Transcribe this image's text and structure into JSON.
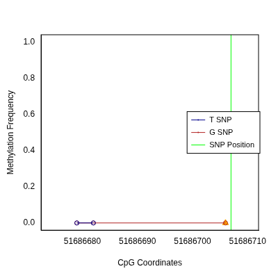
{
  "chart_data": {
    "type": "scatter",
    "x_label": "CpG Coordinates",
    "y_label": "Methylation Frequency",
    "x": [
      51686679,
      51686682,
      51686706
    ],
    "series": [
      {
        "name": "T SNP",
        "color": "#00008b",
        "marker": "circle",
        "line_style": "solid",
        "values": [
          0,
          0,
          null
        ]
      },
      {
        "name": "G SNP",
        "color": "#b22222",
        "marker": "circle",
        "line_style": "solid",
        "values": [
          0,
          0,
          0
        ]
      },
      {
        "color": "#ffa500",
        "marker": "triangle",
        "values": [
          null,
          null,
          0
        ]
      }
    ],
    "vlines": [
      {
        "name": "SNP Position",
        "x": 51686707,
        "color": "#00ff00"
      }
    ],
    "xlim": [
      51686672.5,
      51686712
    ],
    "xticks": [
      51686680,
      51686690,
      51686700,
      51686710
    ],
    "ylim": [
      -0.04,
      1.04
    ],
    "yticks": [
      {
        "value": 0,
        "label": "0.0"
      },
      {
        "value": 0.2,
        "label": "0.2"
      },
      {
        "value": 0.4,
        "label": "0.4"
      },
      {
        "value": 0.6,
        "label": "0.6"
      },
      {
        "value": 0.8,
        "label": "0.8"
      },
      {
        "value": 1,
        "label": "1.0"
      }
    ],
    "grid": false,
    "legend": "right"
  }
}
